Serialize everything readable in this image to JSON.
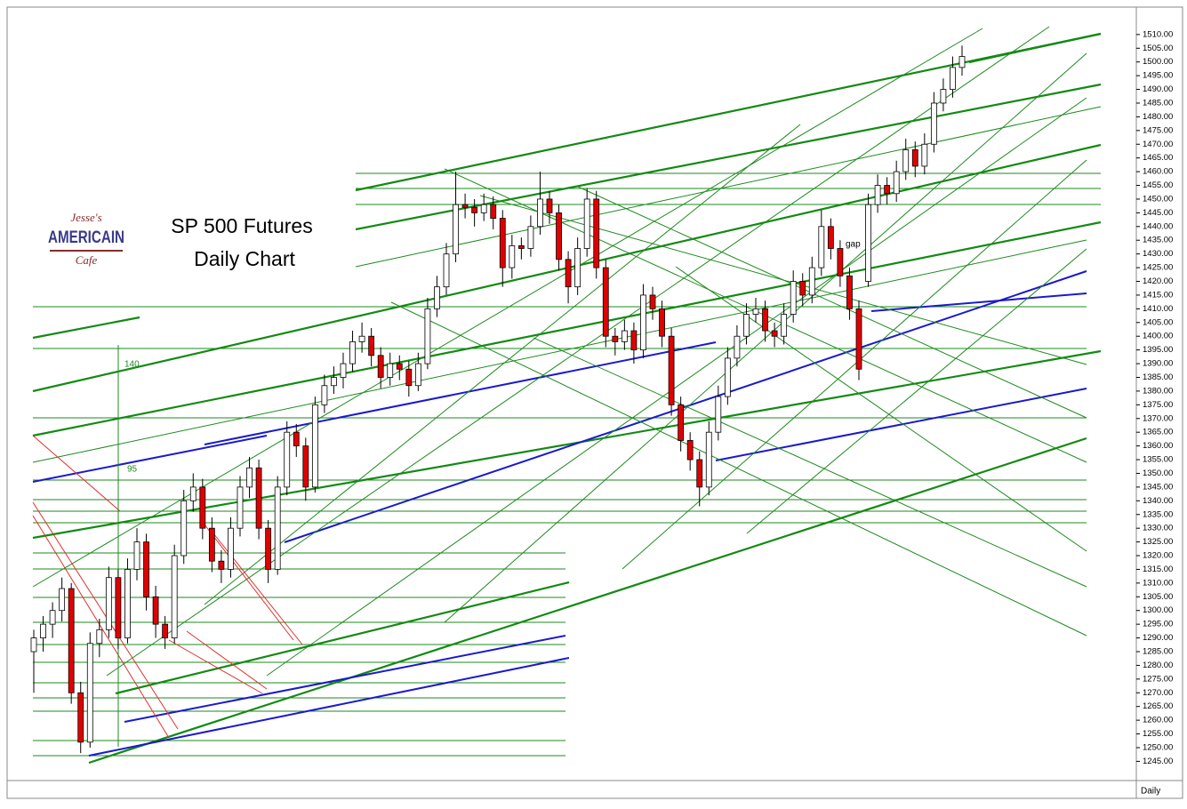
{
  "logo": {
    "top": "Jesse's",
    "middle": "AMERICAIN",
    "bottom": "Cafe"
  },
  "chart_data": {
    "type": "candlestick",
    "title": "SP 500 Futures",
    "subtitle": "Daily Chart",
    "timeframe": "Daily",
    "annotations": [
      "140",
      "95",
      "gap"
    ],
    "up_color": "#ffffff",
    "down_color": "#e00000",
    "ylim": [
      1238,
      1520
    ],
    "yticks": [
      {
        "value": 1245,
        "label": "1245.00"
      },
      {
        "value": 1250,
        "label": "1250.00"
      },
      {
        "value": 1255,
        "label": "1255.00"
      },
      {
        "value": 1260,
        "label": "1260.00"
      },
      {
        "value": 1265,
        "label": "1265.00"
      },
      {
        "value": 1270,
        "label": "1270.00"
      },
      {
        "value": 1275,
        "label": "1275.00"
      },
      {
        "value": 1280,
        "label": "1280.00"
      },
      {
        "value": 1285,
        "label": "1285.00"
      },
      {
        "value": 1290,
        "label": "1290.00"
      },
      {
        "value": 1295,
        "label": "1295.00"
      },
      {
        "value": 1300,
        "label": "1300.00"
      },
      {
        "value": 1305,
        "label": "1305.00"
      },
      {
        "value": 1310,
        "label": "1310.00"
      },
      {
        "value": 1315,
        "label": "1315.00"
      },
      {
        "value": 1320,
        "label": "1320.00"
      },
      {
        "value": 1325,
        "label": "1325.00"
      },
      {
        "value": 1330,
        "label": "1330.00"
      },
      {
        "value": 1335,
        "label": "1335.00"
      },
      {
        "value": 1340,
        "label": "1340.00"
      },
      {
        "value": 1345,
        "label": "1345.00"
      },
      {
        "value": 1350,
        "label": "1350.00"
      },
      {
        "value": 1355,
        "label": "1355.00"
      },
      {
        "value": 1360,
        "label": "1360.00"
      },
      {
        "value": 1365,
        "label": "1365.00"
      },
      {
        "value": 1370,
        "label": "1370.00"
      },
      {
        "value": 1375,
        "label": "1375.00"
      },
      {
        "value": 1380,
        "label": "1380.00"
      },
      {
        "value": 1385,
        "label": "1385.00"
      },
      {
        "value": 1390,
        "label": "1390.00"
      },
      {
        "value": 1395,
        "label": "1395.00"
      },
      {
        "value": 1400,
        "label": "1400.00"
      },
      {
        "value": 1405,
        "label": "1405.00"
      },
      {
        "value": 1410,
        "label": "1410.00"
      },
      {
        "value": 1415,
        "label": "1415.00"
      },
      {
        "value": 1420,
        "label": "1420.00"
      },
      {
        "value": 1425,
        "label": "1425.00"
      },
      {
        "value": 1430,
        "label": "1430.00"
      },
      {
        "value": 1435,
        "label": "1435.00"
      },
      {
        "value": 1440,
        "label": "1440.00"
      },
      {
        "value": 1445,
        "label": "1445.00"
      },
      {
        "value": 1450,
        "label": "1450.00"
      },
      {
        "value": 1455,
        "label": "1455.00"
      },
      {
        "value": 1460,
        "label": "1460.00"
      },
      {
        "value": 1465,
        "label": "1465.00"
      },
      {
        "value": 1470,
        "label": "1470.00"
      },
      {
        "value": 1475,
        "label": "1475.00"
      },
      {
        "value": 1480,
        "label": "1480.00"
      },
      {
        "value": 1485,
        "label": "1485.00"
      },
      {
        "value": 1490,
        "label": "1490.00"
      },
      {
        "value": 1495,
        "label": "1495.00"
      },
      {
        "value": 1500,
        "label": "1500.00"
      },
      {
        "value": 1505,
        "label": "1505.00"
      },
      {
        "value": 1510,
        "label": "1510.00"
      }
    ],
    "open": [
      1285,
      1290,
      1295,
      1300,
      1308,
      1270,
      1252,
      1288,
      1293,
      1312,
      1290,
      1315,
      1325,
      1305,
      1295,
      1290,
      1320,
      1340,
      1345,
      1330,
      1318,
      1315,
      1330,
      1345,
      1352,
      1330,
      1315,
      1345,
      1365,
      1360,
      1345,
      1375,
      1382,
      1385,
      1390,
      1398,
      1400,
      1393,
      1385,
      1390,
      1388,
      1382,
      1390,
      1410,
      1418,
      1430,
      1448,
      1447,
      1445,
      1448,
      1443,
      1425,
      1433,
      1432,
      1440,
      1450,
      1445,
      1428,
      1418,
      1432,
      1450,
      1425,
      1400,
      1398,
      1402,
      1395,
      1415,
      1410,
      1400,
      1375,
      1362,
      1355,
      1345,
      1365,
      1378,
      1392,
      1400,
      1408,
      1410,
      1402,
      1400,
      1408,
      1420,
      1415,
      1425,
      1440,
      1432,
      1422,
      1410,
      1420,
      1448,
      1455,
      1452,
      1460,
      1468,
      1462,
      1470,
      1485,
      1490,
      1498
    ],
    "high": [
      1293,
      1298,
      1303,
      1312,
      1310,
      1274,
      1292,
      1297,
      1316,
      1315,
      1319,
      1330,
      1328,
      1309,
      1298,
      1324,
      1344,
      1350,
      1348,
      1334,
      1322,
      1334,
      1349,
      1356,
      1355,
      1333,
      1349,
      1369,
      1368,
      1363,
      1378,
      1386,
      1389,
      1394,
      1402,
      1405,
      1403,
      1396,
      1394,
      1393,
      1391,
      1394,
      1414,
      1422,
      1434,
      1460,
      1452,
      1450,
      1452,
      1451,
      1446,
      1437,
      1436,
      1444,
      1460,
      1453,
      1448,
      1431,
      1436,
      1454,
      1453,
      1428,
      1403,
      1406,
      1405,
      1419,
      1418,
      1413,
      1403,
      1378,
      1365,
      1358,
      1369,
      1382,
      1396,
      1404,
      1412,
      1414,
      1413,
      1405,
      1412,
      1424,
      1423,
      1429,
      1446,
      1443,
      1435,
      1425,
      1413,
      1452,
      1459,
      1458,
      1464,
      1472,
      1471,
      1474,
      1489,
      1494,
      1502,
      1506
    ],
    "low": [
      1270,
      1285,
      1290,
      1296,
      1266,
      1248,
      1250,
      1283,
      1290,
      1286,
      1288,
      1311,
      1300,
      1290,
      1286,
      1288,
      1317,
      1336,
      1326,
      1314,
      1310,
      1312,
      1327,
      1341,
      1326,
      1310,
      1313,
      1342,
      1356,
      1340,
      1343,
      1372,
      1379,
      1381,
      1387,
      1394,
      1389,
      1381,
      1382,
      1384,
      1378,
      1380,
      1388,
      1407,
      1415,
      1427,
      1443,
      1440,
      1442,
      1439,
      1418,
      1421,
      1428,
      1429,
      1437,
      1441,
      1424,
      1412,
      1415,
      1429,
      1421,
      1396,
      1393,
      1395,
      1390,
      1392,
      1406,
      1396,
      1371,
      1358,
      1351,
      1338,
      1342,
      1362,
      1375,
      1389,
      1397,
      1405,
      1398,
      1396,
      1397,
      1405,
      1411,
      1412,
      1422,
      1428,
      1418,
      1406,
      1384,
      1418,
      1445,
      1448,
      1449,
      1457,
      1458,
      1459,
      1467,
      1482,
      1487,
      1495
    ],
    "close": [
      1290,
      1295,
      1300,
      1308,
      1270,
      1252,
      1288,
      1293,
      1312,
      1290,
      1315,
      1325,
      1305,
      1295,
      1290,
      1320,
      1340,
      1345,
      1330,
      1318,
      1315,
      1330,
      1345,
      1352,
      1330,
      1315,
      1345,
      1365,
      1360,
      1345,
      1375,
      1382,
      1385,
      1390,
      1398,
      1400,
      1393,
      1385,
      1390,
      1388,
      1382,
      1390,
      1410,
      1418,
      1430,
      1448,
      1447,
      1445,
      1448,
      1443,
      1425,
      1433,
      1432,
      1440,
      1450,
      1445,
      1428,
      1418,
      1432,
      1450,
      1425,
      1400,
      1398,
      1402,
      1395,
      1415,
      1410,
      1400,
      1375,
      1362,
      1355,
      1345,
      1365,
      1378,
      1392,
      1400,
      1408,
      1410,
      1402,
      1400,
      1408,
      1420,
      1415,
      1425,
      1440,
      1432,
      1422,
      1410,
      1388,
      1448,
      1455,
      1452,
      1460,
      1468,
      1462,
      1470,
      1485,
      1490,
      1498,
      1502
    ]
  }
}
